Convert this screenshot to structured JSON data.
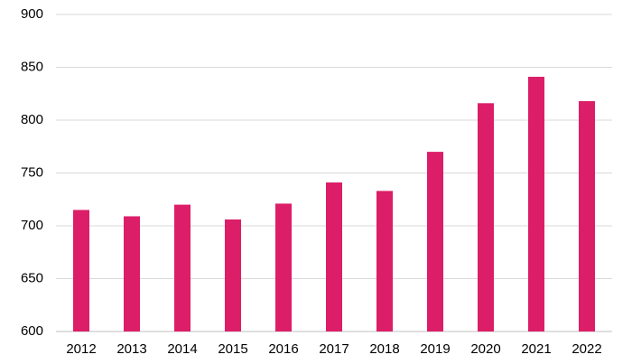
{
  "chart_data": {
    "type": "bar",
    "categories": [
      "2012",
      "2013",
      "2014",
      "2015",
      "2016",
      "2017",
      "2018",
      "2019",
      "2020",
      "2021",
      "2022"
    ],
    "values": [
      715,
      709,
      720,
      706,
      721,
      741,
      733,
      770,
      816,
      841,
      818
    ],
    "color": "#dc1e68",
    "ylim": [
      600,
      900
    ],
    "yticks": [
      600,
      650,
      700,
      750,
      800,
      850,
      900
    ],
    "grid": true
  }
}
